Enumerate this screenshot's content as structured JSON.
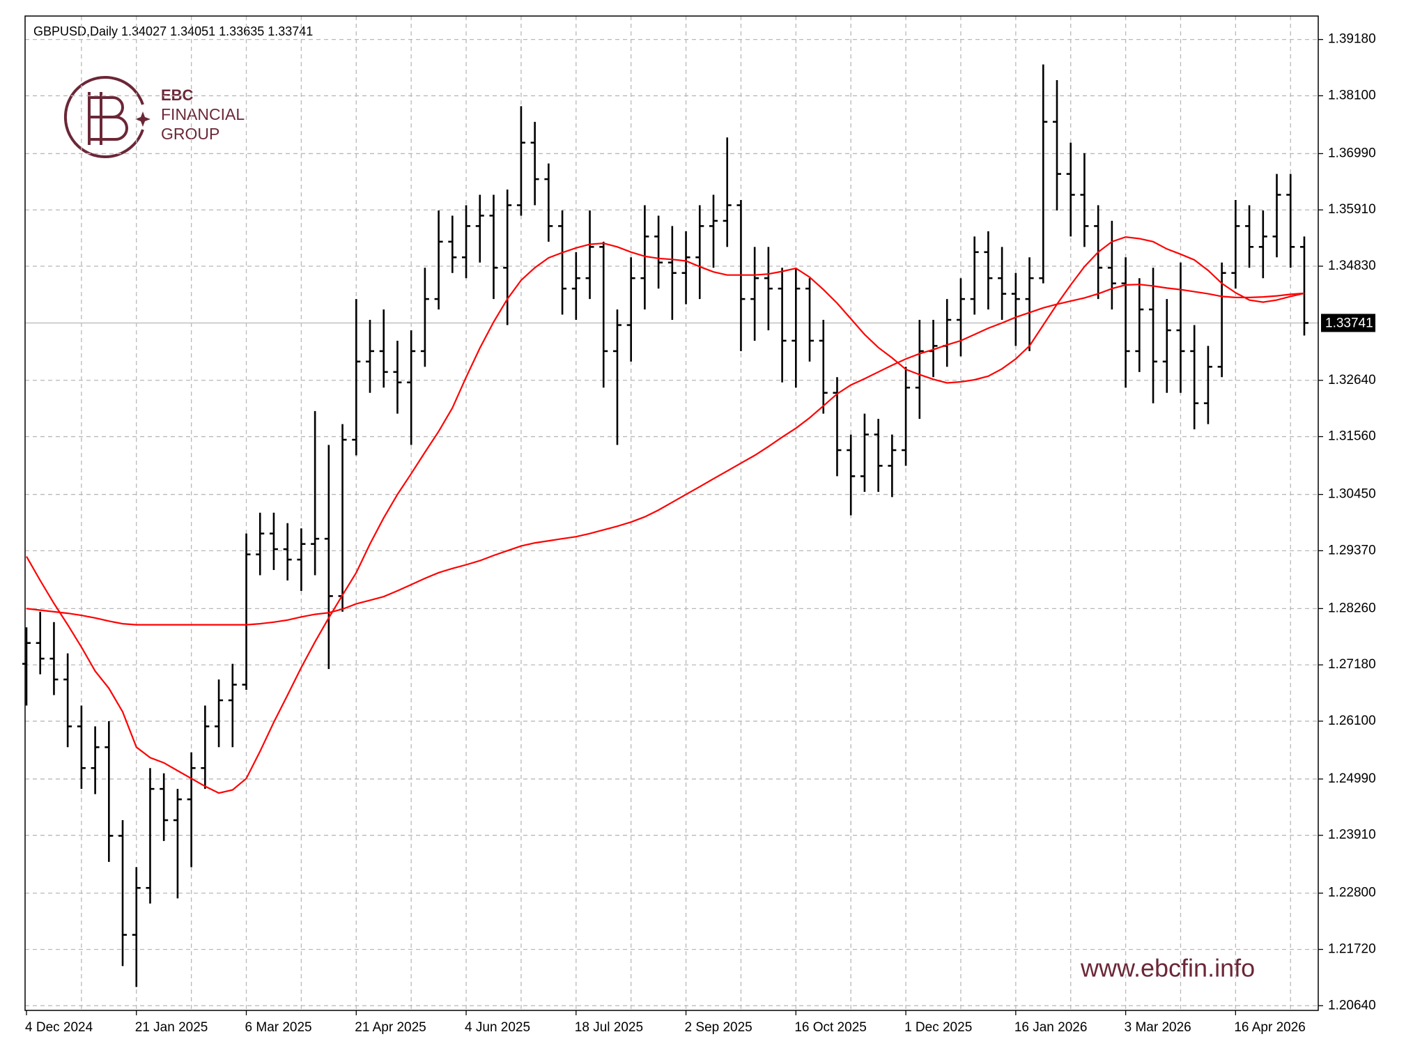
{
  "chart_data": {
    "type": "ohlc",
    "title": "GBPUSD,Daily  1.34027 1.34051 1.33635 1.33741",
    "categories": [
      "4 Dec 2024",
      null,
      null,
      null,
      null,
      null,
      null,
      null,
      "21 Jan 2025",
      null,
      null,
      null,
      null,
      null,
      null,
      null,
      "6 Mar 2025",
      null,
      null,
      null,
      null,
      null,
      null,
      null,
      "21 Apr 2025",
      null,
      null,
      null,
      null,
      null,
      null,
      null,
      "4 Jun 2025",
      null,
      null,
      null,
      null,
      null,
      null,
      null,
      "18 Jul 2025",
      null,
      null,
      null,
      null,
      null,
      null,
      null,
      "2 Sep 2025",
      null,
      null,
      null,
      null,
      null,
      null,
      null,
      "16 Oct 2025",
      null,
      null,
      null,
      null,
      null,
      null,
      null,
      "1 Dec 2025",
      null,
      null,
      null,
      null,
      null,
      null,
      null,
      "16 Jan 2026",
      null,
      null,
      null,
      null,
      null,
      null,
      null,
      "3 Mar 2026",
      null,
      null,
      null,
      null,
      null,
      null,
      null,
      "16 Apr 2026",
      null,
      null,
      null,
      null,
      null
    ],
    "open": [
      1.272,
      1.276,
      1.273,
      1.269,
      1.26,
      1.252,
      1.256,
      1.239,
      1.22,
      1.229,
      1.248,
      1.242,
      1.246,
      1.252,
      1.26,
      1.265,
      1.268,
      1.293,
      1.297,
      1.294,
      1.292,
      1.295,
      1.296,
      1.285,
      1.315,
      1.33,
      1.332,
      1.328,
      1.326,
      1.332,
      1.342,
      1.353,
      1.35,
      1.356,
      1.358,
      1.348,
      1.36,
      1.372,
      1.365,
      1.356,
      1.344,
      1.346,
      1.352,
      1.332,
      1.337,
      1.346,
      1.354,
      1.349,
      1.347,
      1.35,
      1.356,
      1.357,
      1.36,
      1.342,
      1.346,
      1.344,
      1.334,
      1.344,
      1.334,
      1.324,
      1.313,
      1.308,
      1.316,
      1.31,
      1.313,
      1.325,
      1.332,
      1.333,
      1.338,
      1.342,
      1.351,
      1.346,
      1.343,
      1.342,
      1.346,
      1.376,
      1.366,
      1.362,
      1.356,
      1.348,
      1.345,
      1.332,
      1.34,
      1.33,
      1.336,
      1.332,
      1.322,
      1.329,
      1.347,
      1.356,
      1.352,
      1.354,
      1.362,
      1.352
    ],
    "high": [
      1.279,
      1.282,
      1.28,
      1.274,
      1.264,
      1.26,
      1.261,
      1.242,
      1.233,
      1.252,
      1.251,
      1.248,
      1.255,
      1.264,
      1.269,
      1.272,
      1.297,
      1.301,
      1.301,
      1.299,
      1.298,
      1.3205,
      1.314,
      1.318,
      1.342,
      1.338,
      1.34,
      1.334,
      1.336,
      1.348,
      1.359,
      1.358,
      1.36,
      1.362,
      1.362,
      1.363,
      1.379,
      1.376,
      1.368,
      1.359,
      1.351,
      1.359,
      1.353,
      1.34,
      1.35,
      1.36,
      1.358,
      1.356,
      1.355,
      1.36,
      1.362,
      1.373,
      1.361,
      1.352,
      1.352,
      1.348,
      1.348,
      1.346,
      1.338,
      1.327,
      1.316,
      1.32,
      1.319,
      1.316,
      1.329,
      1.338,
      1.338,
      1.342,
      1.346,
      1.354,
      1.355,
      1.352,
      1.347,
      1.35,
      1.387,
      1.384,
      1.372,
      1.37,
      1.36,
      1.357,
      1.35,
      1.346,
      1.348,
      1.342,
      1.349,
      1.337,
      1.333,
      1.349,
      1.361,
      1.36,
      1.359,
      1.366,
      1.366,
      1.354
    ],
    "low": [
      1.264,
      1.27,
      1.266,
      1.256,
      1.248,
      1.247,
      1.234,
      1.214,
      1.21,
      1.226,
      1.238,
      1.227,
      1.233,
      1.248,
      1.256,
      1.256,
      1.267,
      1.289,
      1.29,
      1.288,
      1.286,
      1.289,
      1.271,
      1.282,
      1.312,
      1.324,
      1.325,
      1.32,
      1.314,
      1.329,
      1.34,
      1.347,
      1.346,
      1.349,
      1.342,
      1.337,
      1.358,
      1.36,
      1.353,
      1.339,
      1.338,
      1.342,
      1.325,
      1.314,
      1.33,
      1.34,
      1.344,
      1.338,
      1.341,
      1.342,
      1.348,
      1.352,
      1.332,
      1.334,
      1.336,
      1.326,
      1.325,
      1.33,
      1.32,
      1.308,
      1.3005,
      1.305,
      1.305,
      1.304,
      1.31,
      1.319,
      1.327,
      1.329,
      1.331,
      1.339,
      1.34,
      1.338,
      1.333,
      1.332,
      1.345,
      1.359,
      1.354,
      1.352,
      1.342,
      1.34,
      1.325,
      1.328,
      1.322,
      1.324,
      1.324,
      1.317,
      1.318,
      1.327,
      1.344,
      1.348,
      1.346,
      1.35,
      1.348,
      1.335
    ],
    "close": [
      1.276,
      1.273,
      1.269,
      1.26,
      1.252,
      1.256,
      1.239,
      1.22,
      1.229,
      1.248,
      1.242,
      1.246,
      1.252,
      1.26,
      1.265,
      1.268,
      1.293,
      1.297,
      1.294,
      1.292,
      1.295,
      1.296,
      1.285,
      1.315,
      1.33,
      1.332,
      1.328,
      1.326,
      1.332,
      1.342,
      1.353,
      1.35,
      1.356,
      1.358,
      1.348,
      1.36,
      1.372,
      1.365,
      1.356,
      1.344,
      1.346,
      1.352,
      1.332,
      1.337,
      1.346,
      1.354,
      1.349,
      1.347,
      1.35,
      1.356,
      1.357,
      1.36,
      1.342,
      1.346,
      1.344,
      1.334,
      1.344,
      1.334,
      1.324,
      1.313,
      1.308,
      1.316,
      1.31,
      1.313,
      1.325,
      1.332,
      1.333,
      1.338,
      1.342,
      1.351,
      1.346,
      1.343,
      1.342,
      1.346,
      1.376,
      1.366,
      1.362,
      1.356,
      1.348,
      1.345,
      1.332,
      1.34,
      1.33,
      1.336,
      1.332,
      1.322,
      1.329,
      1.347,
      1.356,
      1.352,
      1.354,
      1.362,
      1.352,
      1.33741
    ],
    "color": "#000000",
    "lines": [
      {
        "color": "#ff0000",
        "values": [
          1.2926,
          1.288,
          1.2836,
          1.2795,
          1.2752,
          1.2706,
          1.2673,
          1.2628,
          1.256,
          1.254,
          1.253,
          1.2515,
          1.25,
          1.2485,
          1.2472,
          1.2478,
          1.25,
          1.2552,
          1.2608,
          1.266,
          1.2713,
          1.2762,
          1.2808,
          1.2852,
          1.2895,
          1.295,
          1.3,
          1.3045,
          1.3085,
          1.3126,
          1.3166,
          1.3211,
          1.327,
          1.3326,
          1.3376,
          1.342,
          1.3456,
          1.348,
          1.3499,
          1.3509,
          1.3518,
          1.3525,
          1.3527,
          1.352,
          1.351,
          1.3502,
          1.3498,
          1.3496,
          1.3493,
          1.3482,
          1.3472,
          1.3466,
          1.3466,
          1.3466,
          1.3468,
          1.3473,
          1.3479,
          1.3462,
          1.3438,
          1.3412,
          1.3382,
          1.3352,
          1.3327,
          1.3307,
          1.3285,
          1.3275,
          1.3266,
          1.3259,
          1.3261,
          1.3265,
          1.3272,
          1.3286,
          1.3305,
          1.333,
          1.337,
          1.341,
          1.3447,
          1.3482,
          1.351,
          1.353,
          1.3539,
          1.3536,
          1.353,
          1.3516,
          1.3506,
          1.3495,
          1.3475,
          1.345,
          1.3432,
          1.3418,
          1.3414,
          1.3418,
          1.3425,
          1.3431
        ]
      },
      {
        "color": "#ff0000",
        "values": [
          1.2826,
          1.2823,
          1.282,
          1.2817,
          1.2813,
          1.2808,
          1.2802,
          1.2797,
          1.2795,
          1.2795,
          1.2795,
          1.2795,
          1.2795,
          1.2795,
          1.2795,
          1.2795,
          1.2795,
          1.2797,
          1.28,
          1.2804,
          1.281,
          1.2815,
          1.2818,
          1.2825,
          1.2835,
          1.2842,
          1.2849,
          1.286,
          1.2872,
          1.2884,
          1.2895,
          1.2903,
          1.291,
          1.2918,
          1.2928,
          1.2937,
          1.2946,
          1.2952,
          1.2956,
          1.296,
          1.2964,
          1.297,
          1.2977,
          1.2984,
          1.2992,
          1.3002,
          1.3015,
          1.303,
          1.3045,
          1.306,
          1.3075,
          1.309,
          1.3105,
          1.312,
          1.3137,
          1.3155,
          1.3172,
          1.3192,
          1.3215,
          1.3238,
          1.3255,
          1.3267,
          1.328,
          1.3293,
          1.3305,
          1.3315,
          1.3323,
          1.3332,
          1.334,
          1.3352,
          1.3364,
          1.3374,
          1.3385,
          1.3394,
          1.3403,
          1.341,
          1.3416,
          1.3422,
          1.343,
          1.344,
          1.3447,
          1.3448,
          1.3445,
          1.3441,
          1.3438,
          1.3434,
          1.343,
          1.3425,
          1.3423,
          1.3423,
          1.3424,
          1.3426,
          1.3429,
          1.3431
        ]
      }
    ],
    "last_price": 1.33741,
    "ylim": [
      1.2055,
      1.3963
    ],
    "yticks": [
      {
        "value": 1.3918,
        "label": "1.39180"
      },
      {
        "value": 1.381,
        "label": "1.38100"
      },
      {
        "value": 1.3699,
        "label": "1.36990"
      },
      {
        "value": 1.3591,
        "label": "1.35910"
      },
      {
        "value": 1.3483,
        "label": "1.34830"
      },
      {
        "value": 1.3264,
        "label": "1.32640"
      },
      {
        "value": 1.3156,
        "label": "1.31560"
      },
      {
        "value": 1.3045,
        "label": "1.30450"
      },
      {
        "value": 1.2937,
        "label": "1.29370"
      },
      {
        "value": 1.2826,
        "label": "1.28260"
      },
      {
        "value": 1.2718,
        "label": "1.27180"
      },
      {
        "value": 1.261,
        "label": "1.26100"
      },
      {
        "value": 1.2499,
        "label": "1.24990"
      },
      {
        "value": 1.2391,
        "label": "1.23910"
      },
      {
        "value": 1.228,
        "label": "1.22800"
      },
      {
        "value": 1.2172,
        "label": "1.21720"
      },
      {
        "value": 1.2064,
        "label": "1.20640"
      }
    ],
    "grid": true,
    "annotations": [
      "EBC",
      "FINANCIAL",
      "GROUP",
      "www.ebcfin.info"
    ]
  }
}
